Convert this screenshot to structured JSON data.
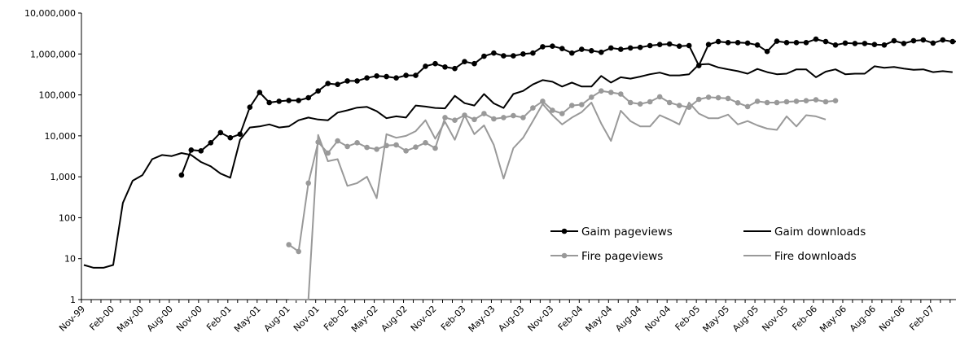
{
  "chart_data": {
    "type": "line",
    "y_scale": "log",
    "ylim": [
      1,
      10000000
    ],
    "y_ticks": [
      "1",
      "10",
      "100",
      "1,000",
      "10,000",
      "100,000",
      "1,000,000",
      "10,000,000"
    ],
    "x_tick_labels": [
      "Nov-99",
      "Feb-00",
      "May-00",
      "Aug-00",
      "Nov-00",
      "Feb-01",
      "May-01",
      "Aug-01",
      "Nov-01",
      "Feb-02",
      "May-02",
      "Aug-02",
      "Nov-02",
      "Feb-03",
      "May-03",
      "Aug-03",
      "Nov-03",
      "Feb-04",
      "May-04",
      "Aug-04",
      "Nov-04",
      "Feb-05",
      "May-05",
      "Aug-05",
      "Nov-05",
      "Feb-06",
      "May-06",
      "Aug-06",
      "Nov-06",
      "Feb-07"
    ],
    "x_range": [
      "Nov-99",
      "Apr-07"
    ],
    "grid": false,
    "legend_position": "bottom-right",
    "series": [
      {
        "name": "Gaim pageviews",
        "color": "#000000",
        "marker": "circle",
        "start": "Sep-00",
        "values": [
          1100,
          4500,
          4300,
          6800,
          12000,
          9000,
          11000,
          50000,
          115000,
          65000,
          70000,
          73000,
          73000,
          85000,
          125000,
          190000,
          180000,
          220000,
          220000,
          260000,
          290000,
          280000,
          260000,
          300000,
          300000,
          500000,
          580000,
          480000,
          440000,
          650000,
          580000,
          880000,
          1050000,
          900000,
          900000,
          1000000,
          1050000,
          1500000,
          1550000,
          1350000,
          1050000,
          1300000,
          1200000,
          1100000,
          1400000,
          1300000,
          1400000,
          1450000,
          1600000,
          1700000,
          1750000,
          1550000,
          1600000,
          520000,
          1700000,
          2000000,
          1900000,
          1900000,
          1850000,
          1650000,
          1150000,
          2050000,
          1900000,
          1900000,
          1900000,
          2300000,
          2000000,
          1650000,
          1850000,
          1800000,
          1800000,
          1700000,
          1650000,
          2100000,
          1800000,
          2100000,
          2200000,
          1850000,
          2200000,
          2000000,
          2050000,
          2300000
        ]
      },
      {
        "name": "Gaim downloads",
        "color": "#000000",
        "marker": "none",
        "start": "Nov-99",
        "values": [
          7,
          6,
          6,
          7,
          230,
          800,
          1100,
          2700,
          3400,
          3200,
          3800,
          3400,
          2300,
          1800,
          1200,
          950,
          8000,
          16000,
          17000,
          19000,
          16000,
          17000,
          24000,
          28000,
          25000,
          24000,
          37000,
          42000,
          49000,
          51000,
          40000,
          27000,
          30000,
          28000,
          55000,
          52000,
          48000,
          47000,
          95000,
          63000,
          55000,
          105000,
          62000,
          48000,
          105000,
          125000,
          180000,
          230000,
          210000,
          160000,
          200000,
          160000,
          160000,
          290000,
          200000,
          270000,
          250000,
          280000,
          320000,
          350000,
          300000,
          300000,
          320000,
          550000,
          570000,
          470000,
          420000,
          380000,
          330000,
          430000,
          360000,
          320000,
          330000,
          420000,
          420000,
          270000,
          370000,
          420000,
          320000,
          330000,
          330000,
          500000,
          460000,
          480000,
          440000,
          410000,
          420000,
          360000,
          380000,
          360000
        ]
      },
      {
        "name": "Fire pageviews",
        "color": "#999999",
        "marker": "circle",
        "start": "Aug-01",
        "values": [
          22,
          15,
          700,
          7000,
          3800,
          7500,
          5500,
          6800,
          5200,
          4700,
          5800,
          6000,
          4300,
          5300,
          6800,
          5000,
          28000,
          24000,
          32000,
          25000,
          35000,
          26000,
          28000,
          31000,
          28000,
          48000,
          70000,
          42000,
          35000,
          55000,
          58000,
          88000,
          125000,
          115000,
          105000,
          65000,
          60000,
          68000,
          90000,
          65000,
          55000,
          50000,
          78000,
          88000,
          85000,
          82000,
          64000,
          52000,
          70000,
          65000,
          65000,
          68000,
          70000,
          72000,
          76000,
          68000,
          72000
        ]
      },
      {
        "name": "Fire downloads",
        "color": "#999999",
        "marker": "none",
        "start": "Aug-01",
        "values": [
          1,
          1,
          1,
          10500,
          2400,
          2700,
          600,
          700,
          1000,
          300,
          11000,
          9000,
          10000,
          13000,
          24000,
          8500,
          22000,
          8000,
          32000,
          11000,
          18000,
          6000,
          900,
          5000,
          9000,
          23000,
          60000,
          32000,
          19000,
          28000,
          38000,
          65000,
          20000,
          7500,
          41000,
          23000,
          17000,
          17000,
          32000,
          25000,
          19000,
          65000,
          35000,
          27000,
          27000,
          33000,
          19000,
          23000,
          18000,
          15000,
          14000,
          30000,
          17000,
          32000,
          30000,
          25000
        ]
      }
    ]
  }
}
